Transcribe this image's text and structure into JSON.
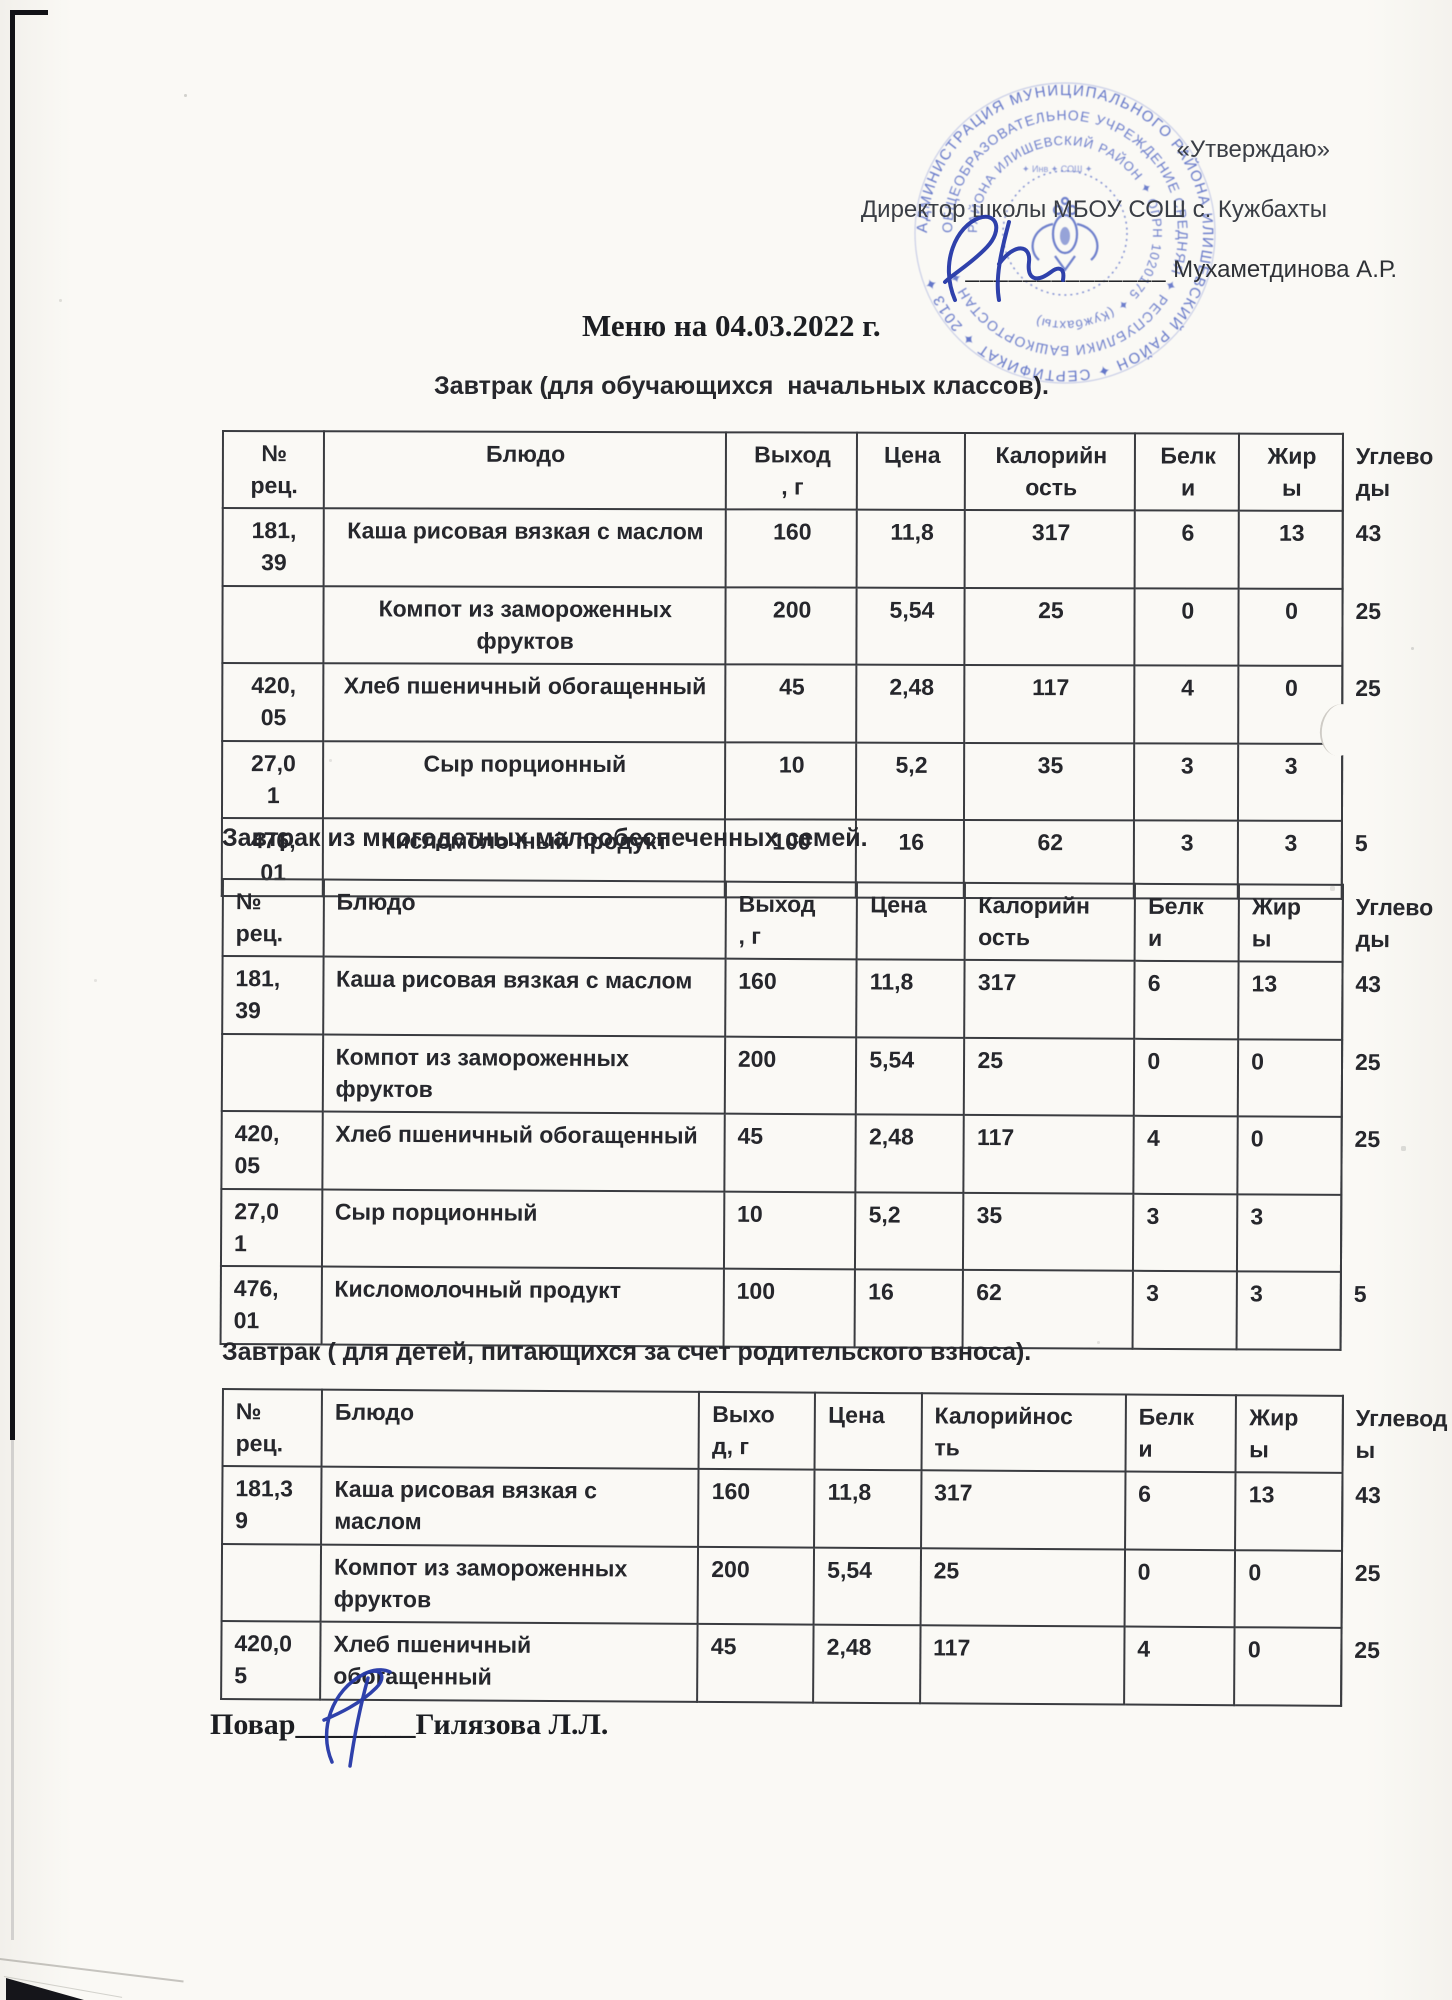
{
  "header": {
    "approve": "«Утверждаю»",
    "director_line": "Директор школы МБОУ СОШ с. Кужбахты",
    "signature_underline": "______________",
    "director_name": " Мухаметдинова А.Р.",
    "title": "Меню на 04.03.2022 г."
  },
  "stamp": {
    "ring_outer": "АДМИНИСТРАЦИЯ МУНИЦИПАЛЬНОГО РАЙОНА ИЛИШЕВСКИЙ РАЙОН ✦ СЕРТИФИКАТ ✦ 2013 ✦",
    "ring_middle": "ОБЩЕОБРАЗОВАТЕЛЬНОЕ УЧРЕЖДЕНИЕ СРЕДНЯЯ ✦ РЕСПУБЛИКИ БАШКОРТОСТАН ✦",
    "ring_inner": "РАЙОНА ИЛИШЕВСКИЙ РАЙОН ✦ ОГРН 1020175 ✦ (Кужбахты)",
    "micro_text": "✦ Инв ✦ СОШ ✦"
  },
  "sections": [
    {
      "caption": "Завтрак (для обучающихся  начальных классов).",
      "table": {
        "columns": [
          "№\nрец.",
          "Блюдо",
          "Выход\n, г",
          "Цена",
          "Калорийн\nость",
          "Белк\nи",
          "Жир\nы",
          "Углево\nды"
        ],
        "rows": [
          [
            "181,\n39",
            "Каша рисовая вязкая с маслом",
            "160",
            "11,8",
            "317",
            "6",
            "13",
            "43"
          ],
          [
            "",
            "Компот из замороженных\nфруктов",
            "200",
            "5,54",
            "25",
            "0",
            "0",
            "25"
          ],
          [
            "420,\n05",
            "Хлеб пшеничный обогащенный",
            "45",
            "2,48",
            "117",
            "4",
            "0",
            "25"
          ],
          [
            "27,0\n1",
            "Сыр порционный",
            "10",
            "5,2",
            "35",
            "3",
            "3",
            ""
          ],
          [
            "476,\n01",
            "Кисломолочный продукт",
            "100",
            "16",
            "62",
            "3",
            "3",
            "5"
          ]
        ]
      }
    },
    {
      "caption": "Завтрак из многодетных малообеспеченных семей.",
      "table": {
        "columns": [
          "№\nрец.",
          "Блюдо",
          "Выход\n, г",
          "Цена",
          "Калорийн\nость",
          "Белк\nи",
          "Жир\nы",
          "Углево\nды"
        ],
        "rows": [
          [
            "181,\n39",
            "Каша рисовая вязкая с маслом",
            "160",
            "11,8",
            "317",
            "6",
            "13",
            "43"
          ],
          [
            "",
            "Компот из замороженных\nфруктов",
            "200",
            "5,54",
            "25",
            "0",
            "0",
            "25"
          ],
          [
            "420,\n05",
            "Хлеб пшеничный обогащенный",
            "45",
            "2,48",
            "117",
            "4",
            "0",
            "25"
          ],
          [
            "27,0\n1",
            "Сыр порционный",
            "10",
            "5,2",
            "35",
            "3",
            "3",
            ""
          ],
          [
            "476,\n01",
            "Кисломолочный продукт",
            "100",
            "16",
            "62",
            "3",
            "3",
            "5"
          ]
        ]
      }
    },
    {
      "caption": "Завтрак ( для детей, питающихся за счет родительского взноса).",
      "table": {
        "columns": [
          "№\nрец.",
          "Блюдо",
          "Выхо\nд, г",
          "Цена",
          "Калорийнос\nть",
          "Белк\nи",
          "Жир\nы",
          "Углевод\nы"
        ],
        "rows": [
          [
            "181,3\n9",
            "Каша рисовая вязкая с\nмаслом",
            "160",
            "11,8",
            "317",
            "6",
            "13",
            "43"
          ],
          [
            "",
            "Компот из замороженных\nфруктов",
            "200",
            "5,54",
            "25",
            "0",
            "0",
            "25"
          ],
          [
            "420,0\n5",
            "Хлеб пшеничный\nобогащенный",
            "45",
            "2,48",
            "117",
            "4",
            "0",
            "25"
          ]
        ]
      }
    }
  ],
  "footer": {
    "cook_label": "Повар",
    "cook_underline": "________",
    "cook_name": "Гилязова Л.Л."
  },
  "colors": {
    "stamp_blue": "#3b53bd",
    "signature_blue": "#2538a8",
    "ink": "#26272c"
  }
}
